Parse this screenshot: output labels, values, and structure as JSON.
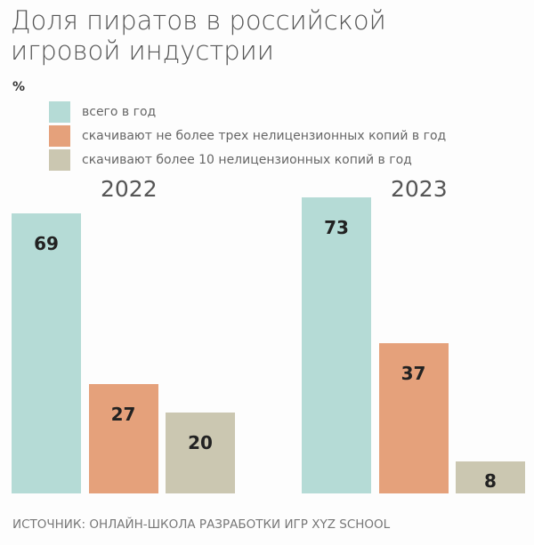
{
  "chart_data": {
    "type": "bar",
    "title": "Доля пиратов в российской игровой индустрии",
    "ylabel": "%",
    "categories": [
      "2022",
      "2023"
    ],
    "series": [
      {
        "name": "всего в год",
        "values": [
          69,
          73
        ],
        "color": "#b5dbd6"
      },
      {
        "name": "скачивают не более трех нелицензионных копий в год",
        "values": [
          27,
          37
        ],
        "color": "#e5a17b"
      },
      {
        "name": "скачивают более 10 нелицензионных копий в год",
        "values": [
          20,
          8
        ],
        "color": "#cbc7b1"
      }
    ],
    "legend_position": "top-left",
    "grid": false,
    "source": "ИСТОЧНИК: ОНЛАЙН-ШКОЛА РАЗРАБОТКИ ИГР XYZ SCHOOL"
  }
}
